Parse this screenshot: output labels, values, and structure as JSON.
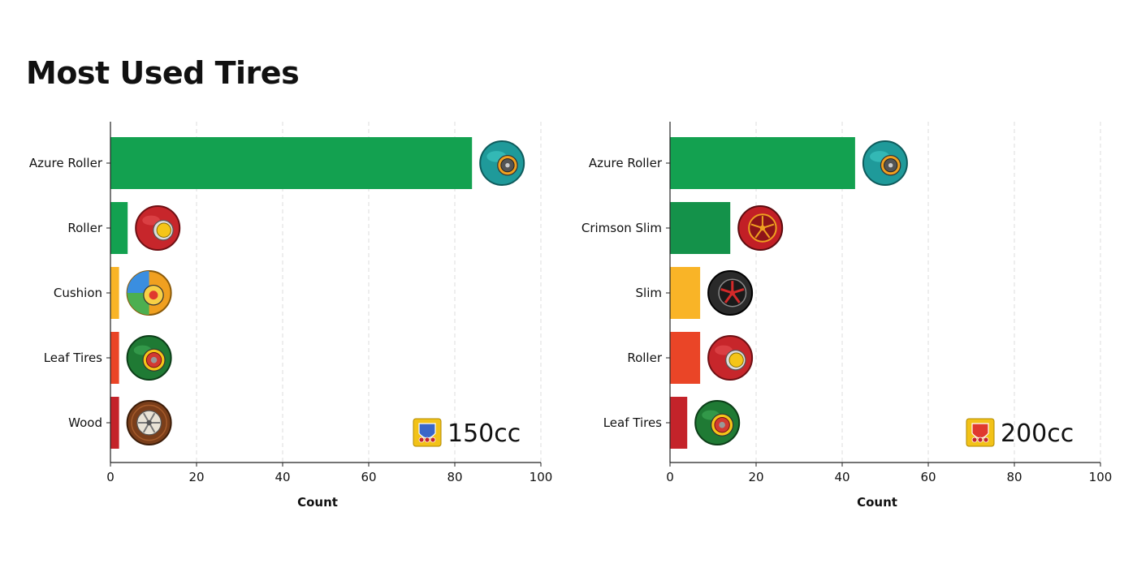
{
  "page": {
    "title": "Most Used Tires"
  },
  "chart_data": [
    {
      "type": "bar",
      "orientation": "horizontal",
      "title": "",
      "badge": {
        "text": "150cc",
        "icon": "150cc-cup-icon"
      },
      "categories": [
        "Azure Roller",
        "Roller",
        "Cushion",
        "Leaf Tires",
        "Wood"
      ],
      "values": [
        84,
        4,
        2,
        2,
        2
      ],
      "colors": [
        "#13a150",
        "#13a150",
        "#f9b427",
        "#ea4527",
        "#c4232a"
      ],
      "icons": [
        "azure-roller-tire-icon",
        "roller-tire-icon",
        "cushion-tire-icon",
        "leaf-tires-icon",
        "wood-tire-icon"
      ],
      "xlabel": "Count",
      "ylabel": "",
      "xlim": [
        0,
        100
      ],
      "xticks": [
        0,
        20,
        40,
        60,
        80,
        100
      ],
      "grid": "vertical dashed"
    },
    {
      "type": "bar",
      "orientation": "horizontal",
      "title": "",
      "badge": {
        "text": "200cc",
        "icon": "200cc-cup-icon"
      },
      "categories": [
        "Azure Roller",
        "Crimson Slim",
        "Slim",
        "Roller",
        "Leaf Tires"
      ],
      "values": [
        43,
        14,
        7,
        7,
        4
      ],
      "colors": [
        "#13a150",
        "#14924a",
        "#f9b427",
        "#ea4527",
        "#c4232a"
      ],
      "icons": [
        "azure-roller-tire-icon",
        "crimson-slim-tire-icon",
        "slim-tire-icon",
        "roller-tire-icon",
        "leaf-tires-icon"
      ],
      "xlabel": "Count",
      "ylabel": "",
      "xlim": [
        0,
        100
      ],
      "xticks": [
        0,
        20,
        40,
        60,
        80,
        100
      ],
      "grid": "vertical dashed"
    }
  ]
}
